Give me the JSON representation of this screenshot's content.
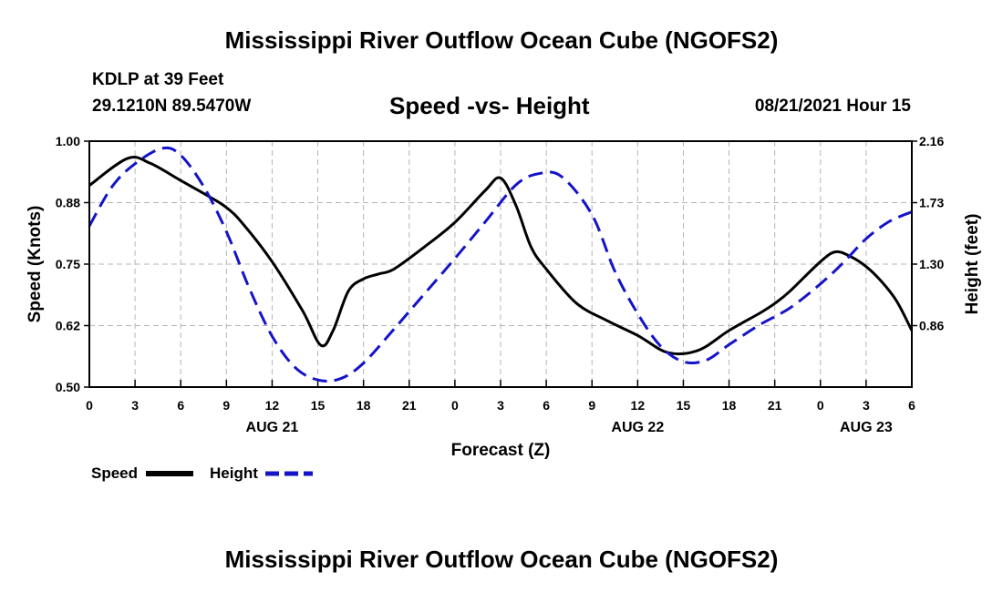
{
  "header": {
    "title": "Mississippi River Outflow Ocean Cube (NGOFS2)",
    "station": "KDLP at 39 Feet",
    "coords": "29.1210N  89.5470W",
    "subtitle": "Speed -vs- Height",
    "datetime": "08/21/2021 Hour 15"
  },
  "footer": {
    "title": "Mississippi River Outflow Ocean Cube (NGOFS2)"
  },
  "colors": {
    "speed": "#000000",
    "height": "#1414c8",
    "grid": "#b4b4b4"
  },
  "chart_data": {
    "type": "line",
    "xlabel": "Forecast (Z)",
    "ylabel": "Speed (Knots)",
    "ylabel_right": "Height (feet)",
    "x_range": [
      0,
      54
    ],
    "ylim": [
      0.5,
      1.0
    ],
    "ylim_right": [
      0.42,
      2.16
    ],
    "x_ticks": [
      0,
      3,
      6,
      9,
      12,
      15,
      18,
      21,
      24,
      27,
      30,
      33,
      36,
      39,
      42,
      45,
      48,
      51,
      54
    ],
    "x_tick_labels": [
      "0",
      "3",
      "6",
      "9",
      "12",
      "15",
      "18",
      "21",
      "0",
      "3",
      "6",
      "9",
      "12",
      "15",
      "18",
      "21",
      "0",
      "3",
      "6"
    ],
    "date_labels": [
      {
        "at": 12,
        "text": "AUG 21"
      },
      {
        "at": 36,
        "text": "AUG 22"
      },
      {
        "at": 51,
        "text": "AUG 23"
      }
    ],
    "y_ticks": [
      "1.00",
      "0.88",
      "0.75",
      "0.62",
      "0.50"
    ],
    "y_tick_values": [
      1.0,
      0.875,
      0.75,
      0.625,
      0.5
    ],
    "y_right_ticks": [
      "2.16",
      "1.73",
      "1.30",
      "0.86"
    ],
    "y_right_tick_values": [
      2.16,
      1.725,
      1.29,
      0.855
    ],
    "grid": true,
    "legend": {
      "position": "bottom-left",
      "speed_label": "Speed",
      "height_label": "Height"
    },
    "series": [
      {
        "name": "Speed",
        "axis": "left",
        "style": "solid",
        "x": [
          0,
          2.5,
          4,
          6,
          8,
          9,
          10,
          12,
          14,
          15.2,
          16,
          17,
          18,
          19,
          20,
          22,
          24,
          26,
          27,
          28,
          29,
          30,
          32,
          34,
          36,
          38,
          40,
          42,
          44,
          45,
          46,
          48,
          49,
          50,
          51,
          52,
          53,
          54
        ],
        "values": [
          0.91,
          0.965,
          0.955,
          0.92,
          0.885,
          0.865,
          0.835,
          0.755,
          0.655,
          0.585,
          0.615,
          0.695,
          0.72,
          0.73,
          0.74,
          0.785,
          0.835,
          0.9,
          0.925,
          0.87,
          0.785,
          0.74,
          0.67,
          0.635,
          0.605,
          0.57,
          0.575,
          0.615,
          0.65,
          0.67,
          0.695,
          0.755,
          0.775,
          0.765,
          0.745,
          0.715,
          0.675,
          0.615
        ]
      },
      {
        "name": "Height",
        "axis": "right",
        "style": "dashed",
        "x": [
          0,
          1.5,
          3,
          4.8,
          6,
          7.5,
          9,
          10.5,
          12,
          13.5,
          15,
          16.5,
          18,
          20,
          22,
          24,
          26,
          28,
          29.5,
          31,
          33,
          34.5,
          36,
          37.5,
          39,
          40.5,
          42,
          44,
          46,
          48,
          49.5,
          51,
          52.5,
          54
        ],
        "values": [
          1.56,
          1.84,
          2.0,
          2.11,
          2.06,
          1.84,
          1.52,
          1.12,
          0.78,
          0.56,
          0.47,
          0.48,
          0.59,
          0.83,
          1.08,
          1.33,
          1.59,
          1.85,
          1.93,
          1.91,
          1.64,
          1.24,
          0.94,
          0.71,
          0.6,
          0.61,
          0.72,
          0.86,
          0.98,
          1.15,
          1.3,
          1.47,
          1.59,
          1.66
        ]
      }
    ]
  }
}
